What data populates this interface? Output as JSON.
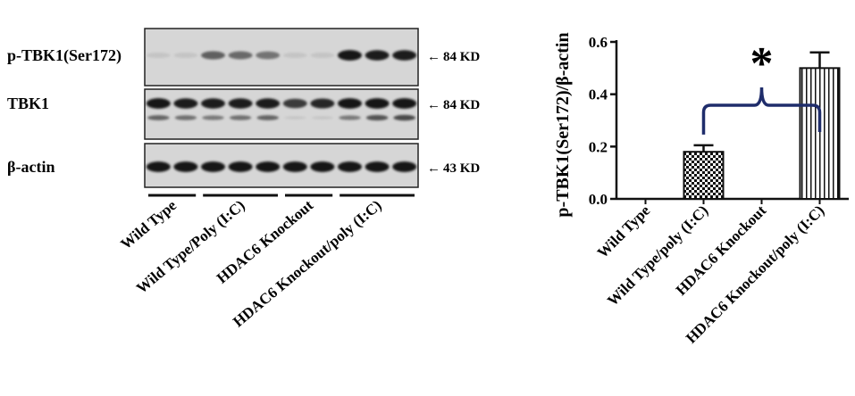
{
  "blot": {
    "rows": [
      {
        "label": "p-TBK1(Ser172)",
        "size": "84 KD",
        "bands": [
          0.02,
          0.02,
          0.55,
          0.5,
          0.45,
          0.02,
          0.02,
          0.95,
          0.9,
          0.9
        ]
      },
      {
        "label": "TBK1",
        "size": "84 KD",
        "bands": [
          0.95,
          0.9,
          0.9,
          0.9,
          0.9,
          0.75,
          0.85,
          0.95,
          0.95,
          0.95
        ],
        "lower_bands": [
          0.55,
          0.5,
          0.45,
          0.5,
          0.55,
          0.05,
          0.05,
          0.45,
          0.65,
          0.7
        ]
      },
      {
        "label": "β-actin",
        "size": "43 KD",
        "bands": [
          0.95,
          0.95,
          0.95,
          0.95,
          0.95,
          0.95,
          0.95,
          0.95,
          0.95,
          0.95
        ]
      }
    ],
    "groups": [
      {
        "label": "Wild Type",
        "lanes": 2
      },
      {
        "label": "Wild Type/Poly (I:C)",
        "lanes": 3
      },
      {
        "label": "HDAC6 Knockout",
        "lanes": 2
      },
      {
        "label": "HDAC6 Knockout/poly (I:C)",
        "lanes": 3
      }
    ]
  },
  "chart_data": {
    "type": "bar",
    "categories": [
      "Wild Type",
      "Wild Type/poly (I:C)",
      "HDAC6 Knockout",
      "HDAC6 Knockout/poly (I:C)"
    ],
    "values": [
      0.0,
      0.18,
      0.0,
      0.5
    ],
    "errors": [
      0.0,
      0.025,
      0.0,
      0.06
    ],
    "patterns": [
      "none",
      "checker",
      "none",
      "vertical-lines"
    ],
    "ylabel": "p-TBK1(Ser172)/β-actin",
    "ylim": [
      0,
      0.6
    ],
    "yticks": [
      "0.0",
      "0.2",
      "0.4",
      "0.6"
    ],
    "significance": {
      "from": 1,
      "to": 3,
      "symbol": "*"
    },
    "bracket_color": "#1f2d6b",
    "grid": false,
    "legend": "none"
  }
}
